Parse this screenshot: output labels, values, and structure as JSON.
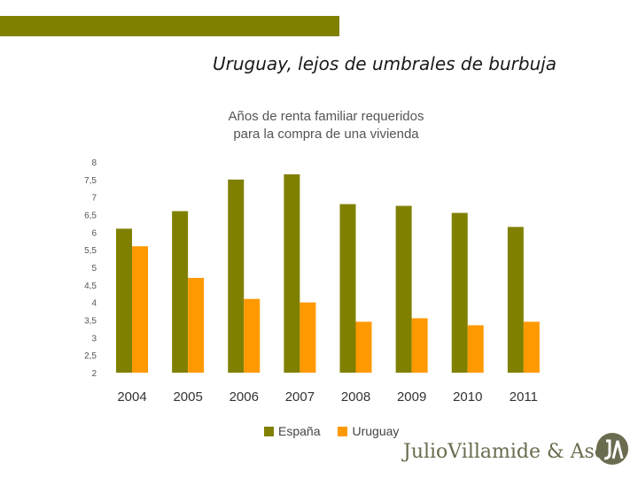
{
  "slide": {
    "title": "Uruguay, lejos de umbrales de burbuja",
    "accent_color": "#808000"
  },
  "footer": {
    "logo_text": "JulioVillamide & Asoc."
  },
  "chart_data": {
    "type": "bar",
    "title_lines": [
      "Años de renta familiar requeridos",
      "para la compra de una vivienda"
    ],
    "categories": [
      "2004",
      "2005",
      "2006",
      "2007",
      "2008",
      "2009",
      "2010",
      "2011"
    ],
    "series": [
      {
        "name": "España",
        "color": "#808000",
        "values": [
          6.1,
          6.6,
          7.5,
          7.65,
          6.8,
          6.75,
          6.55,
          6.15
        ]
      },
      {
        "name": "Uruguay",
        "color": "#FF9900",
        "values": [
          5.6,
          4.7,
          4.1,
          4.0,
          3.45,
          3.55,
          3.35,
          3.45
        ]
      }
    ],
    "y_ticks": [
      "2",
      "2,5",
      "3",
      "3,5",
      "4",
      "4,5",
      "5",
      "5,5",
      "6",
      "6,5",
      "7",
      "7,5",
      "8"
    ],
    "ylim": [
      2,
      8
    ],
    "grid": false,
    "legend_position": "bottom"
  }
}
